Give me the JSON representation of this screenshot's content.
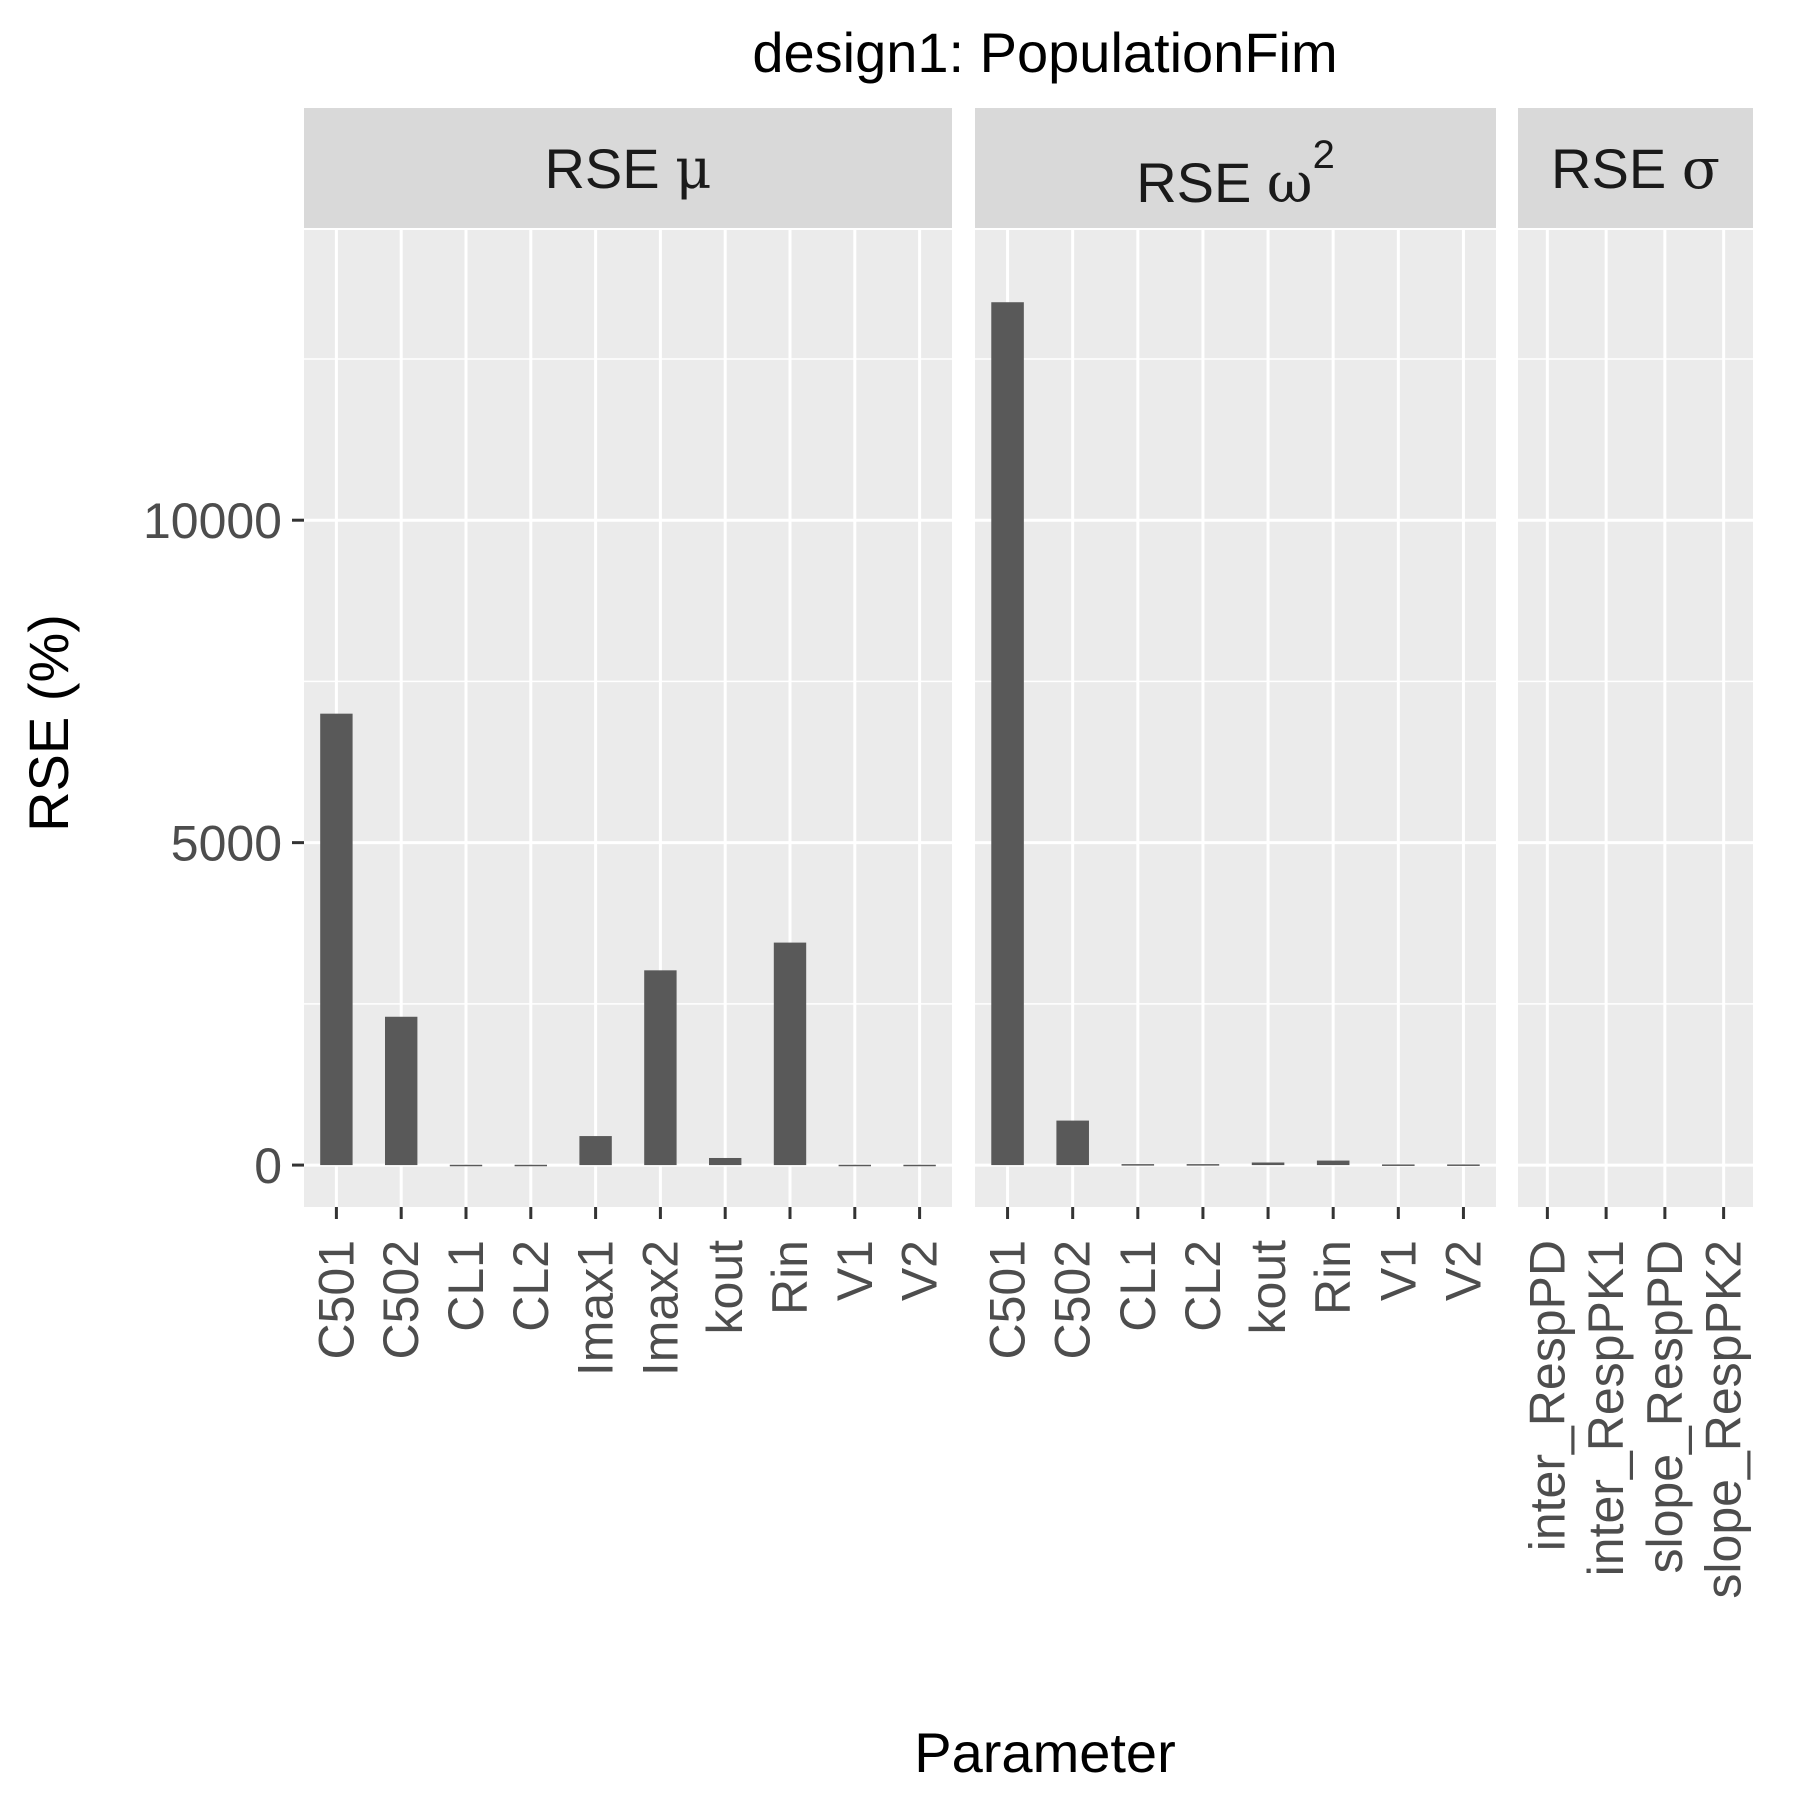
{
  "chart_data": {
    "type": "bar",
    "title": "design1: PopulationFim",
    "xlabel": "Parameter",
    "ylabel": "RSE (%)",
    "ylim": [
      -650,
      14500
    ],
    "yticks": [
      0,
      5000,
      10000
    ],
    "grid": true,
    "bar_color": "#595959",
    "panel_bg": "#ebebeb",
    "strip_bg": "#d9d9d9",
    "facets": [
      {
        "label_main": "RSE ",
        "label_greek": "μ",
        "label_sup": "",
        "categories": [
          "C501",
          "C502",
          "CL1",
          "CL2",
          "Imax1",
          "Imax2",
          "kout",
          "Rin",
          "V1",
          "V2"
        ],
        "values": [
          7000,
          2300,
          5,
          5,
          450,
          3020,
          110,
          3450,
          5,
          5
        ]
      },
      {
        "label_main": "RSE ",
        "label_greek": "ω",
        "label_sup": "2",
        "categories": [
          "C501",
          "C502",
          "CL1",
          "CL2",
          "kout",
          "Rin",
          "V1",
          "V2"
        ],
        "values": [
          13380,
          690,
          15,
          15,
          40,
          70,
          10,
          10
        ]
      },
      {
        "label_main": "RSE ",
        "label_greek": "σ",
        "label_sup": "",
        "categories": [
          "inter_RespPD",
          "inter_RespPK1",
          "slope_RespPD",
          "slope_RespPK2"
        ],
        "values": [
          0,
          0,
          0,
          0
        ]
      }
    ]
  }
}
